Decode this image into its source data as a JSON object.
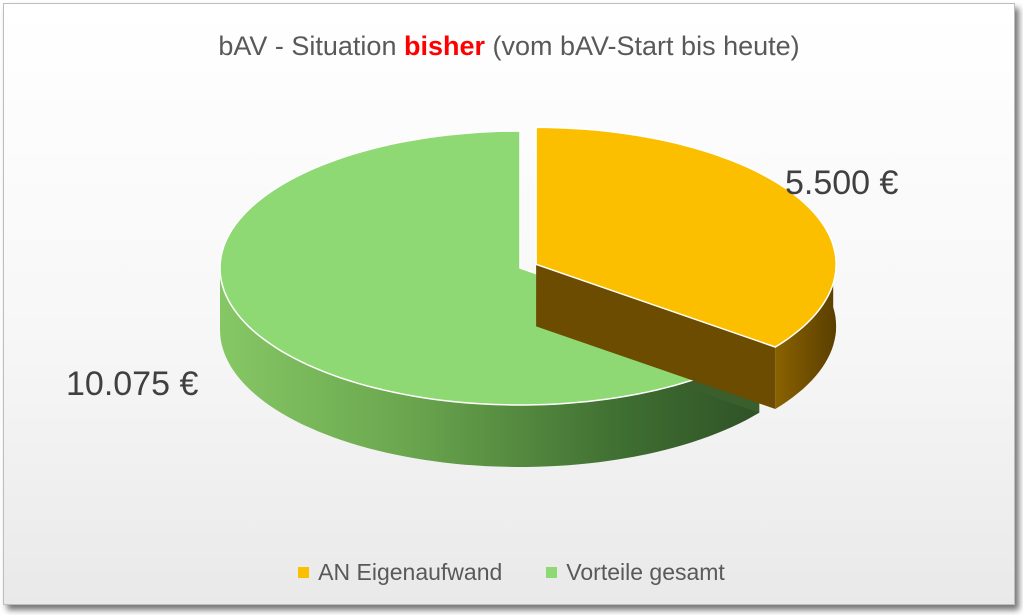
{
  "chart_data": {
    "type": "pie",
    "title": {
      "before": "bAV - Situation ",
      "highlight": "bisher",
      "after": " (vom bAV-Start bis heute)"
    },
    "slices": [
      {
        "name": "AN Eigenaufwand",
        "value": 5500,
        "label": "5.500 €",
        "color": "#fbbf00",
        "exploded": true
      },
      {
        "name": "Vorteile gesamt",
        "value": 10075,
        "label": "10.075 €",
        "color": "#8fd974"
      }
    ],
    "legend_position": "bottom",
    "style": "3d-exploded"
  },
  "colors": {
    "title_highlight": "#ff0000",
    "text": "#595959",
    "label": "#404040"
  }
}
